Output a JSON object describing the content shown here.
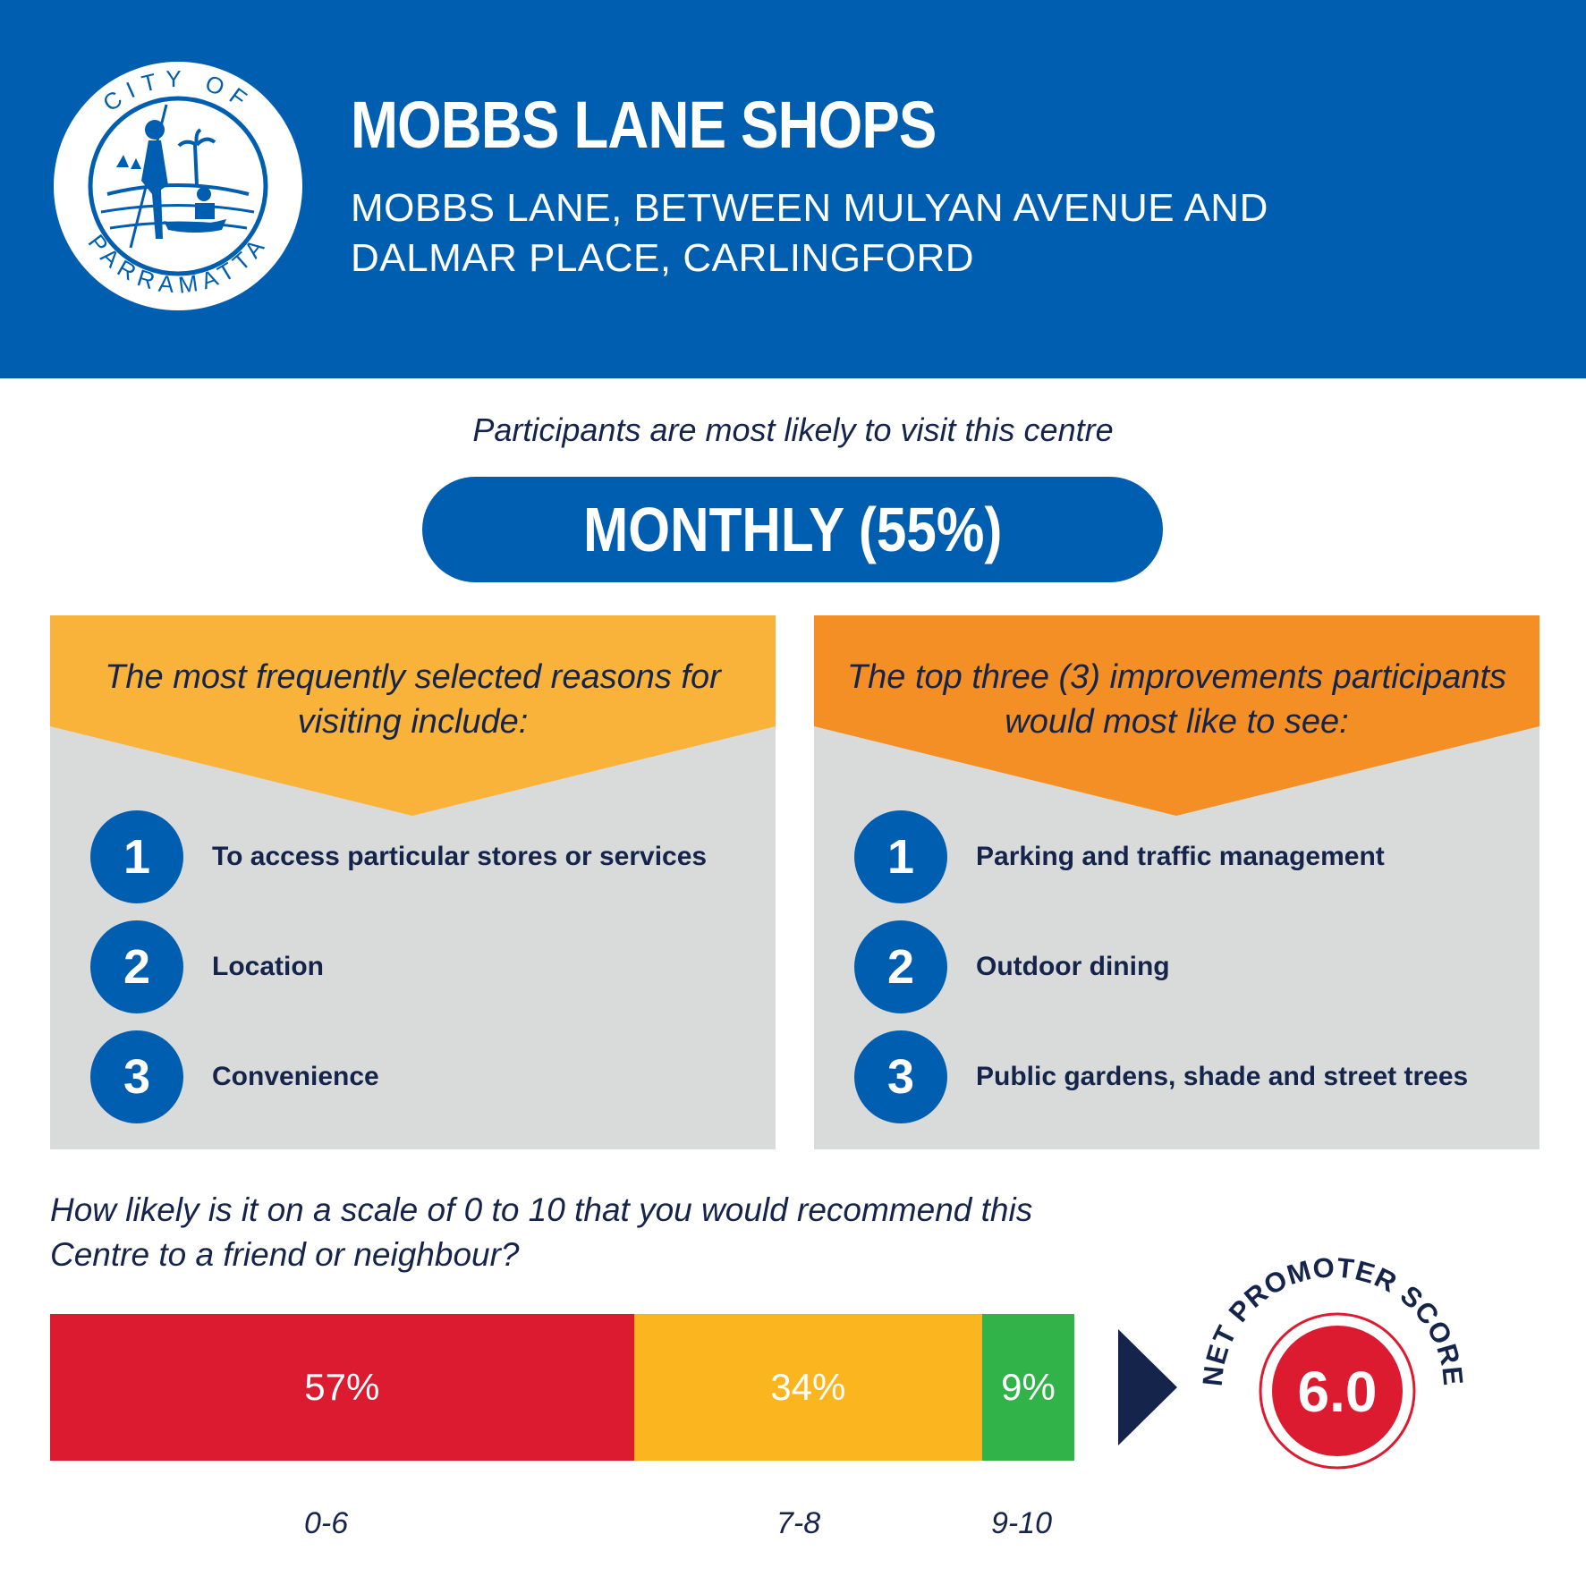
{
  "header": {
    "logo_top_text": "CITY OF",
    "logo_bottom_text": "PARRAMATTA",
    "title": "MOBBS LANE SHOPS",
    "subtitle": "MOBBS LANE, BETWEEN MULYAN AVENUE AND DALMAR PLACE, CARLINGFORD"
  },
  "visit": {
    "intro": "Participants are most likely to visit this centre",
    "frequency": "MONTHLY (55%)"
  },
  "reasons": {
    "heading": "The most frequently selected reasons for visiting include:",
    "items": [
      {
        "number": "1",
        "label": "To access particular stores or services"
      },
      {
        "number": "2",
        "label": "Location"
      },
      {
        "number": "3",
        "label": "Convenience"
      }
    ]
  },
  "improvements": {
    "heading": "The top three (3) improvements participants would most like to see:",
    "items": [
      {
        "number": "1",
        "label": "Parking and traffic management"
      },
      {
        "number": "2",
        "label": "Outdoor dining"
      },
      {
        "number": "3",
        "label": "Public gardens, shade and street trees"
      }
    ]
  },
  "recommend": {
    "question": "How likely is it on a scale of 0 to 10 that you would recommend this Centre to a friend or neighbour?",
    "segments": [
      {
        "label": "57%",
        "share": 57,
        "range": "0-6",
        "color": "#dc1b31"
      },
      {
        "label": "34%",
        "share": 34,
        "range": "7-8",
        "color": "#fbb51f"
      },
      {
        "label": "9%",
        "share": 9,
        "range": "9-10",
        "color": "#32b34a"
      }
    ],
    "nps_label": "NET PROMOTER SCORE",
    "nps_value": "6.0"
  },
  "colors": {
    "brand_blue": "#005eb0",
    "navy": "#15244a",
    "yellow_panel": "#f9b23a",
    "orange_panel": "#f48f25",
    "grey_panel": "#d9dbdb",
    "nps_red": "#dc1b31"
  }
}
